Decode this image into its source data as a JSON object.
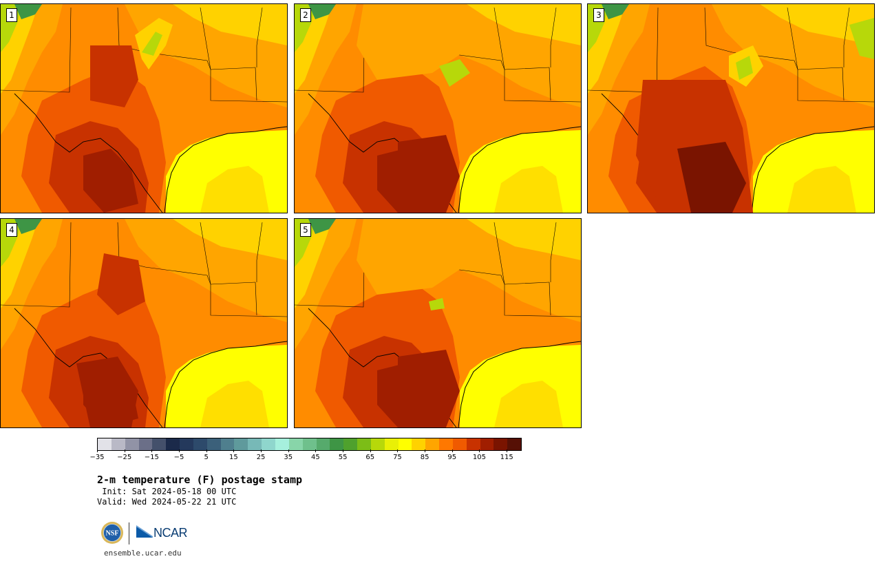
{
  "panels": [
    {
      "label": "1"
    },
    {
      "label": "2"
    },
    {
      "label": "3"
    },
    {
      "label": "4"
    },
    {
      "label": "5"
    }
  ],
  "colorbar": {
    "colors": [
      "#e2e2e8",
      "#b9b9c6",
      "#9193a6",
      "#6b6f88",
      "#44506b",
      "#1b2a4a",
      "#24395c",
      "#2d4a6b",
      "#3b607a",
      "#4f7f8e",
      "#5f9a9c",
      "#77b9b7",
      "#8fd6cd",
      "#a6f0dd",
      "#88d5a9",
      "#6fc08c",
      "#56aa6c",
      "#3e9545",
      "#4fa12d",
      "#7cbd17",
      "#b7d80a",
      "#e9f006",
      "#ffff00",
      "#ffd200",
      "#ffa500",
      "#ff7800",
      "#f05a00",
      "#c83200",
      "#a01e00",
      "#7a1400",
      "#561005"
    ],
    "tick_values": [
      "−35",
      "−25",
      "−15",
      "−5",
      "5",
      "15",
      "25",
      "35",
      "45",
      "55",
      "65",
      "75",
      "85",
      "95",
      "105",
      "115"
    ]
  },
  "title": "2-m temperature (F) postage stamp",
  "init_line": " Init: Sat 2024-05-18 00 UTC",
  "valid_line": "Valid: Wed 2024-05-22 21 UTC",
  "logos": {
    "nsf": "NSF",
    "ncar": "NCAR"
  },
  "site": "ensemble.ucar.edu"
}
